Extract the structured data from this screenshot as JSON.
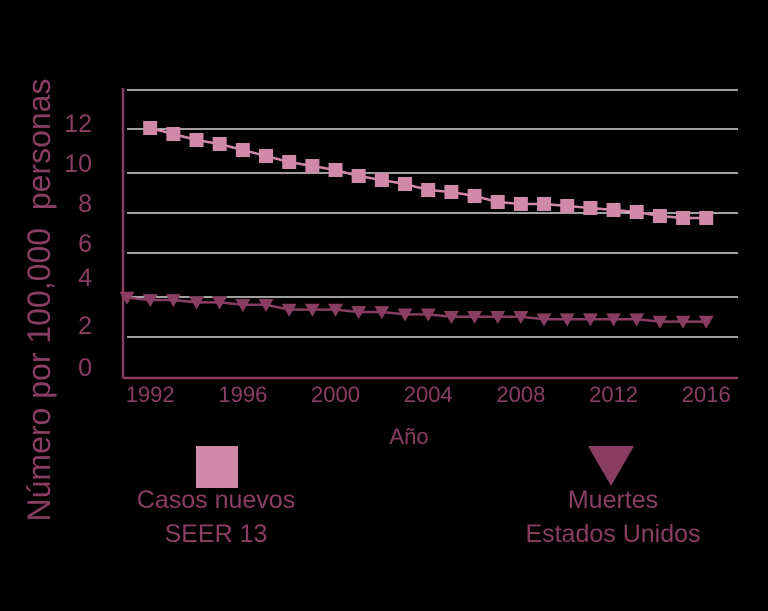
{
  "chart_data": {
    "type": "line",
    "title": "",
    "xlabel": "Año",
    "ylabel": "Número por 100,000  personas",
    "xlim": [
      1991,
      2017
    ],
    "ylim": [
      0,
      13
    ],
    "x_ticks": [
      "1992",
      "1996",
      "2000",
      "2004",
      "2008",
      "2012",
      "2016"
    ],
    "y_ticks": [
      "0",
      "2",
      "4",
      "6",
      "8",
      "10",
      "12"
    ],
    "grid": true,
    "series": [
      {
        "name": "Casos nuevos SEER 13",
        "marker": "square",
        "color": "#d08aa8",
        "x": [
          1992,
          1993,
          1994,
          1995,
          1996,
          1997,
          1998,
          1999,
          2000,
          2001,
          2002,
          2003,
          2004,
          2005,
          2006,
          2007,
          2008,
          2009,
          2010,
          2011,
          2012,
          2013,
          2014,
          2015,
          2016
        ],
        "values": [
          11.7,
          11.4,
          11.1,
          10.9,
          10.6,
          10.3,
          10.0,
          9.8,
          9.6,
          9.3,
          9.1,
          8.9,
          8.6,
          8.5,
          8.3,
          8.0,
          7.9,
          7.9,
          7.8,
          7.7,
          7.6,
          7.5,
          7.3,
          7.2,
          7.2
        ]
      },
      {
        "name": "Muertes Estados Unidos",
        "marker": "triangle-down",
        "color": "#8a3d63",
        "x": [
          1991,
          1992,
          1993,
          1994,
          1995,
          1996,
          1997,
          1998,
          1999,
          2000,
          2001,
          2002,
          2003,
          2004,
          2005,
          2006,
          2007,
          2008,
          2009,
          2010,
          2011,
          2012,
          2013,
          2014,
          2015,
          2016
        ],
        "values": [
          3.1,
          3.0,
          3.0,
          2.9,
          2.9,
          2.8,
          2.8,
          2.6,
          2.6,
          2.6,
          2.5,
          2.5,
          2.4,
          2.4,
          2.3,
          2.3,
          2.3,
          2.3,
          2.2,
          2.2,
          2.2,
          2.2,
          2.2,
          2.1,
          2.1,
          2.1
        ]
      }
    ]
  },
  "legend": {
    "new_cases_line1": "Casos nuevos",
    "new_cases_line2": "SEER 13",
    "deaths_line1": "Muertes",
    "deaths_line2": "Estados Unidos"
  },
  "colors": {
    "background": "#000000",
    "axis": "#8a3d63",
    "grid": "#ffffff",
    "text": "#8a3d63",
    "new_cases": "#d08aa8",
    "deaths": "#8a3d63"
  }
}
